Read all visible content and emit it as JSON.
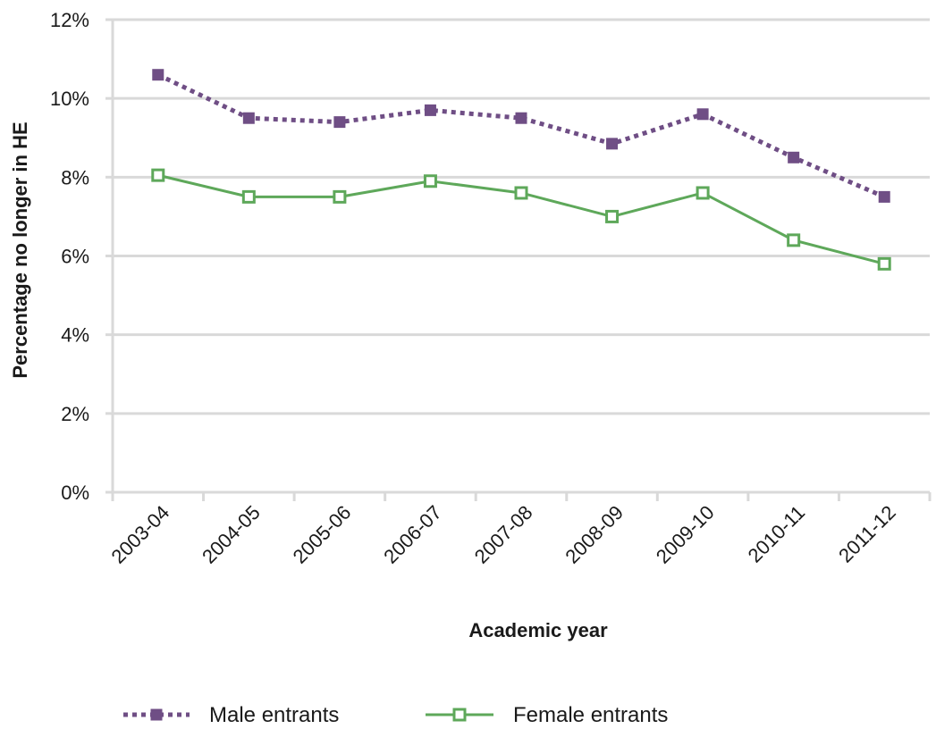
{
  "chart_data": {
    "type": "line",
    "title": "",
    "xlabel": "Academic year",
    "ylabel": "Percentage no longer in HE",
    "ylim": [
      0,
      12
    ],
    "y_tick_values": [
      0,
      2,
      4,
      6,
      8,
      10,
      12
    ],
    "y_tick_labels": [
      "0%",
      "2%",
      "4%",
      "6%",
      "8%",
      "10%",
      "12%"
    ],
    "grid": true,
    "legend_position": "bottom",
    "categories": [
      "2003-04",
      "2004-05",
      "2005-06",
      "2006-07",
      "2007-08",
      "2008-09",
      "2009-10",
      "2010-11",
      "2011-12"
    ],
    "series": [
      {
        "name": "Male entrants",
        "values": [
          10.6,
          9.5,
          9.4,
          9.7,
          9.5,
          8.85,
          9.6,
          8.5,
          7.5
        ],
        "color": "#6f4e85",
        "line_style": "dotted",
        "marker": "filled-square"
      },
      {
        "name": "Female entrants",
        "values": [
          8.05,
          7.5,
          7.5,
          7.9,
          7.6,
          7.0,
          7.6,
          6.4,
          5.8
        ],
        "color": "#5ea85a",
        "line_style": "solid",
        "marker": "hollow-square"
      }
    ]
  }
}
